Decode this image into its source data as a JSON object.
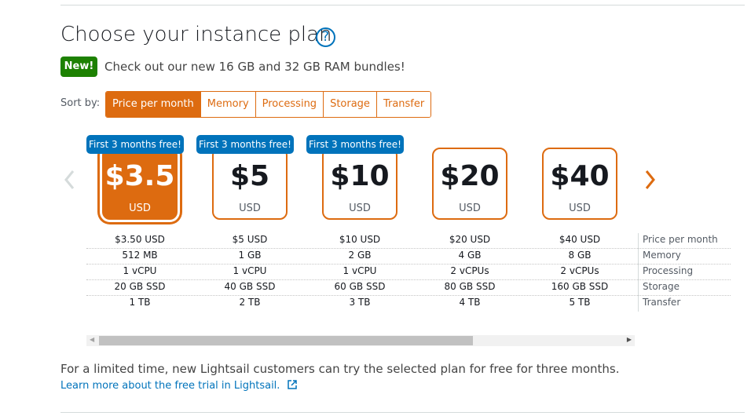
{
  "header": {
    "title": "Choose your instance plan",
    "help": "?"
  },
  "banner": {
    "badge": "New!",
    "text": "Check out our new 16 GB and 32 GB RAM bundles!"
  },
  "sort": {
    "label": "Sort by:",
    "options": [
      "Price per month",
      "Memory",
      "Processing",
      "Storage",
      "Transfer"
    ],
    "selected": 0
  },
  "plans": {
    "selected": 0,
    "items": [
      {
        "badge": "First 3 months free!",
        "price": "$3.5",
        "currency": "USD",
        "details": [
          "$3.50 USD",
          "512 MB",
          "1 vCPU",
          "20 GB SSD",
          "1 TB"
        ]
      },
      {
        "badge": "First 3 months free!",
        "price": "$5",
        "currency": "USD",
        "details": [
          "$5 USD",
          "1 GB",
          "1 vCPU",
          "40 GB SSD",
          "2 TB"
        ]
      },
      {
        "badge": "First 3 months free!",
        "price": "$10",
        "currency": "USD",
        "details": [
          "$10 USD",
          "2 GB",
          "1 vCPU",
          "60 GB SSD",
          "3 TB"
        ]
      },
      {
        "price": "$20",
        "currency": "USD",
        "details": [
          "$20 USD",
          "4 GB",
          "2 vCPUs",
          "80 GB SSD",
          "4 TB"
        ]
      },
      {
        "price": "$40",
        "currency": "USD",
        "details": [
          "$40 USD",
          "8 GB",
          "2 vCPUs",
          "160 GB SSD",
          "5 TB"
        ]
      }
    ],
    "row_labels": [
      "Price per month",
      "Memory",
      "Processing",
      "Storage",
      "Transfer"
    ]
  },
  "footer": {
    "text": "For a limited time, new Lightsail customers can try the selected plan for free for three months.",
    "link": "Learn more about the free trial in Lightsail."
  }
}
